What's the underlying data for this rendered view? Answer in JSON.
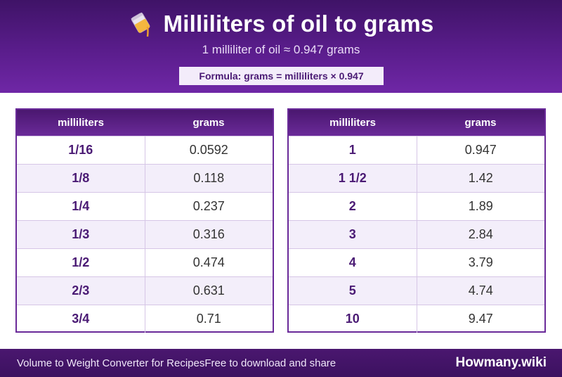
{
  "header": {
    "title": "Milliliters of oil to grams",
    "subtitle": "1 milliliter of oil ≈ 0.947 grams",
    "formula": "Formula: grams = milliliters × 0.947",
    "icon": "pouring-oil-icon"
  },
  "tables": [
    {
      "headers": [
        "milliliters",
        "grams"
      ],
      "rows": [
        {
          "ml": "1/16",
          "g": "0.0592"
        },
        {
          "ml": "1/8",
          "g": "0.118"
        },
        {
          "ml": "1/4",
          "g": "0.237"
        },
        {
          "ml": "1/3",
          "g": "0.316"
        },
        {
          "ml": "1/2",
          "g": "0.474"
        },
        {
          "ml": "2/3",
          "g": "0.631"
        },
        {
          "ml": "3/4",
          "g": "0.71"
        }
      ]
    },
    {
      "headers": [
        "milliliters",
        "grams"
      ],
      "rows": [
        {
          "ml": "1",
          "g": "0.947"
        },
        {
          "ml": "1 1/2",
          "g": "1.42"
        },
        {
          "ml": "2",
          "g": "1.89"
        },
        {
          "ml": "3",
          "g": "2.84"
        },
        {
          "ml": "4",
          "g": "3.79"
        },
        {
          "ml": "5",
          "g": "4.74"
        },
        {
          "ml": "10",
          "g": "9.47"
        }
      ]
    }
  ],
  "footer": {
    "left_text": "Volume to Weight Converter for RecipesFree to download and share",
    "brand": "Howmany.wiki"
  },
  "colors": {
    "accent": "#5a1d8c",
    "accent_dark": "#3f1367",
    "row_alt": "#f3eefa",
    "ml_text": "#4a1a74"
  }
}
